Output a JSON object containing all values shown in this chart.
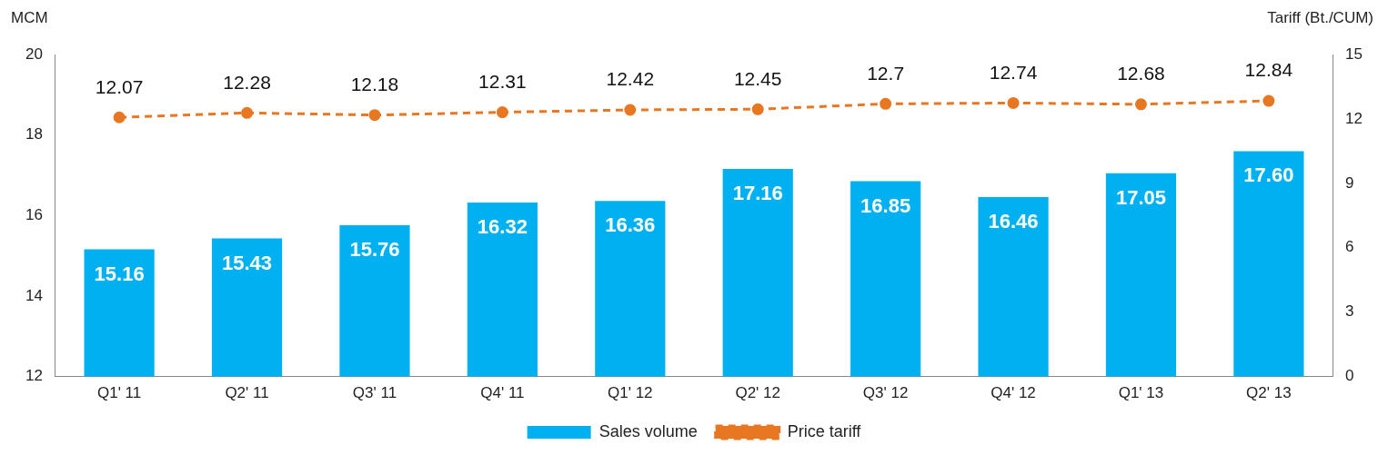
{
  "chart_data": {
    "type": "bar",
    "ylabel": "MCM",
    "y2label": "Tariff (Bt./CUM)",
    "categories": [
      "Q1' 11",
      "Q2' 11",
      "Q3' 11",
      "Q4' 11",
      "Q1' 12",
      "Q2' 12",
      "Q3' 12",
      "Q4' 12",
      "Q1' 13",
      "Q2' 13"
    ],
    "series": [
      {
        "name": "Sales volume",
        "color": "#00b0f0",
        "values": [
          15.16,
          15.43,
          15.76,
          16.32,
          16.36,
          17.16,
          16.85,
          16.46,
          17.05,
          17.6
        ],
        "value_labels": [
          "15.16",
          "15.43",
          "15.76",
          "16.32",
          "16.36",
          "17.16",
          "16.85",
          "16.46",
          "17.05",
          "17.60"
        ]
      },
      {
        "name": "Price tariff",
        "type": "line",
        "axis": "y2",
        "color": "#e87722",
        "line_style": "dashed",
        "marker": "circle",
        "values": [
          12.07,
          12.28,
          12.18,
          12.31,
          12.42,
          12.45,
          12.7,
          12.74,
          12.68,
          12.84
        ],
        "value_labels": [
          "12.07",
          "12.28",
          "12.18",
          "12.31",
          "12.42",
          "12.45",
          "12.7",
          "12.74",
          "12.68",
          "12.84"
        ]
      }
    ],
    "ylim": [
      12,
      20
    ],
    "yticks": [
      12,
      14,
      16,
      18,
      20
    ],
    "y2lim": [
      0,
      15
    ],
    "y2ticks": [
      0,
      3,
      6,
      9,
      12,
      15
    ],
    "grid": false,
    "legend": "bottom"
  }
}
